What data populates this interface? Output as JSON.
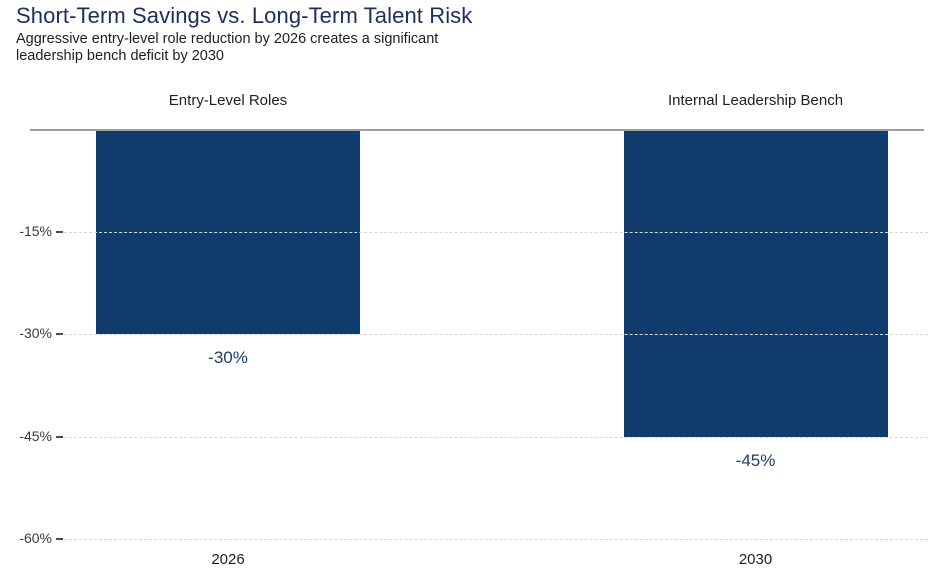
{
  "header": {
    "title": "Short-Term Savings vs. Long-Term Talent Risk",
    "subtitle": "Aggressive entry-level role reduction by 2026 creates a significant\nleadership bench deficit by 2030"
  },
  "chart_data": {
    "type": "bar",
    "title": "Short-Term Savings vs. Long-Term Talent Risk",
    "subtitle": "Aggressive entry-level role reduction by 2026 creates a significant leadership bench deficit by 2030",
    "group_labels": [
      "Entry-Level Roles",
      "Internal Leadership Bench"
    ],
    "categories": [
      "2026",
      "2030"
    ],
    "values": [
      -30,
      -45
    ],
    "data_labels": [
      "-30%",
      "-45%"
    ],
    "unit": "%",
    "xlabel": "",
    "ylabel": "",
    "ylim": [
      -60,
      0
    ],
    "yticks": [
      "-15%",
      "-30%",
      "-45%",
      "-60%"
    ],
    "ytick_values": [
      -15,
      -30,
      -45,
      -60
    ],
    "grid": "horizontal-dashed",
    "legend": "none",
    "colors": {
      "bar": "#113a6d",
      "title": "#1c2e5f",
      "data_label": "#1d3c6f",
      "axis_line": "#9e9e9e",
      "gridline": "#d7d7d7",
      "background": "#ffffff"
    }
  }
}
